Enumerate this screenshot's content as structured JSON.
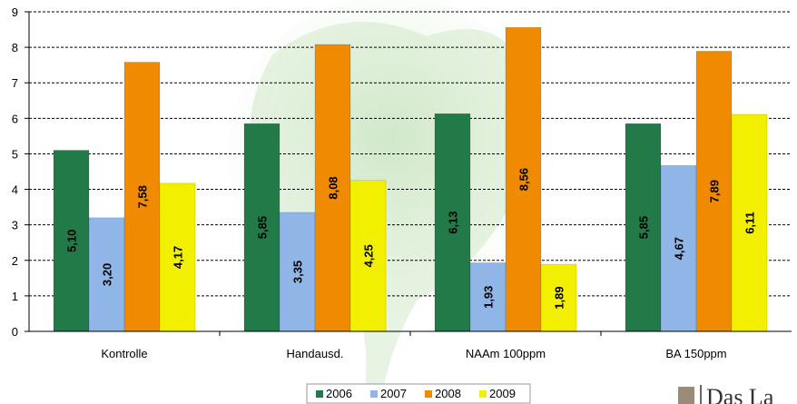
{
  "chart_data": {
    "type": "bar",
    "categories": [
      "Kontrolle",
      "Handausd.",
      "NAAm 100ppm",
      "BA 150ppm"
    ],
    "series": [
      {
        "name": "2006",
        "values": [
          5.1,
          5.85,
          6.13,
          5.85
        ],
        "labels": [
          "5,10",
          "5,85",
          "6,13",
          "5,85"
        ],
        "color": "#217a48"
      },
      {
        "name": "2007",
        "values": [
          3.2,
          3.35,
          1.93,
          4.67
        ],
        "labels": [
          "3,20",
          "3,35",
          "1,93",
          "4,67"
        ],
        "color": "#8fb6e6"
      },
      {
        "name": "2008",
        "values": [
          7.58,
          8.08,
          8.56,
          7.89
        ],
        "labels": [
          "7,58",
          "8,08",
          "8,56",
          "7,89"
        ],
        "color": "#f08a00"
      },
      {
        "name": "2009",
        "values": [
          4.17,
          4.25,
          1.89,
          6.11
        ],
        "labels": [
          "4,17",
          "4,25",
          "1,89",
          "6,11"
        ],
        "color": "#f2f000"
      }
    ],
    "yticks": [
      "0",
      "1",
      "2",
      "3",
      "4",
      "5",
      "6",
      "7",
      "8",
      "9"
    ],
    "ylim": [
      0,
      9
    ],
    "grid": true,
    "legend_position": "bottom"
  },
  "logo": {
    "text": "Das La"
  }
}
